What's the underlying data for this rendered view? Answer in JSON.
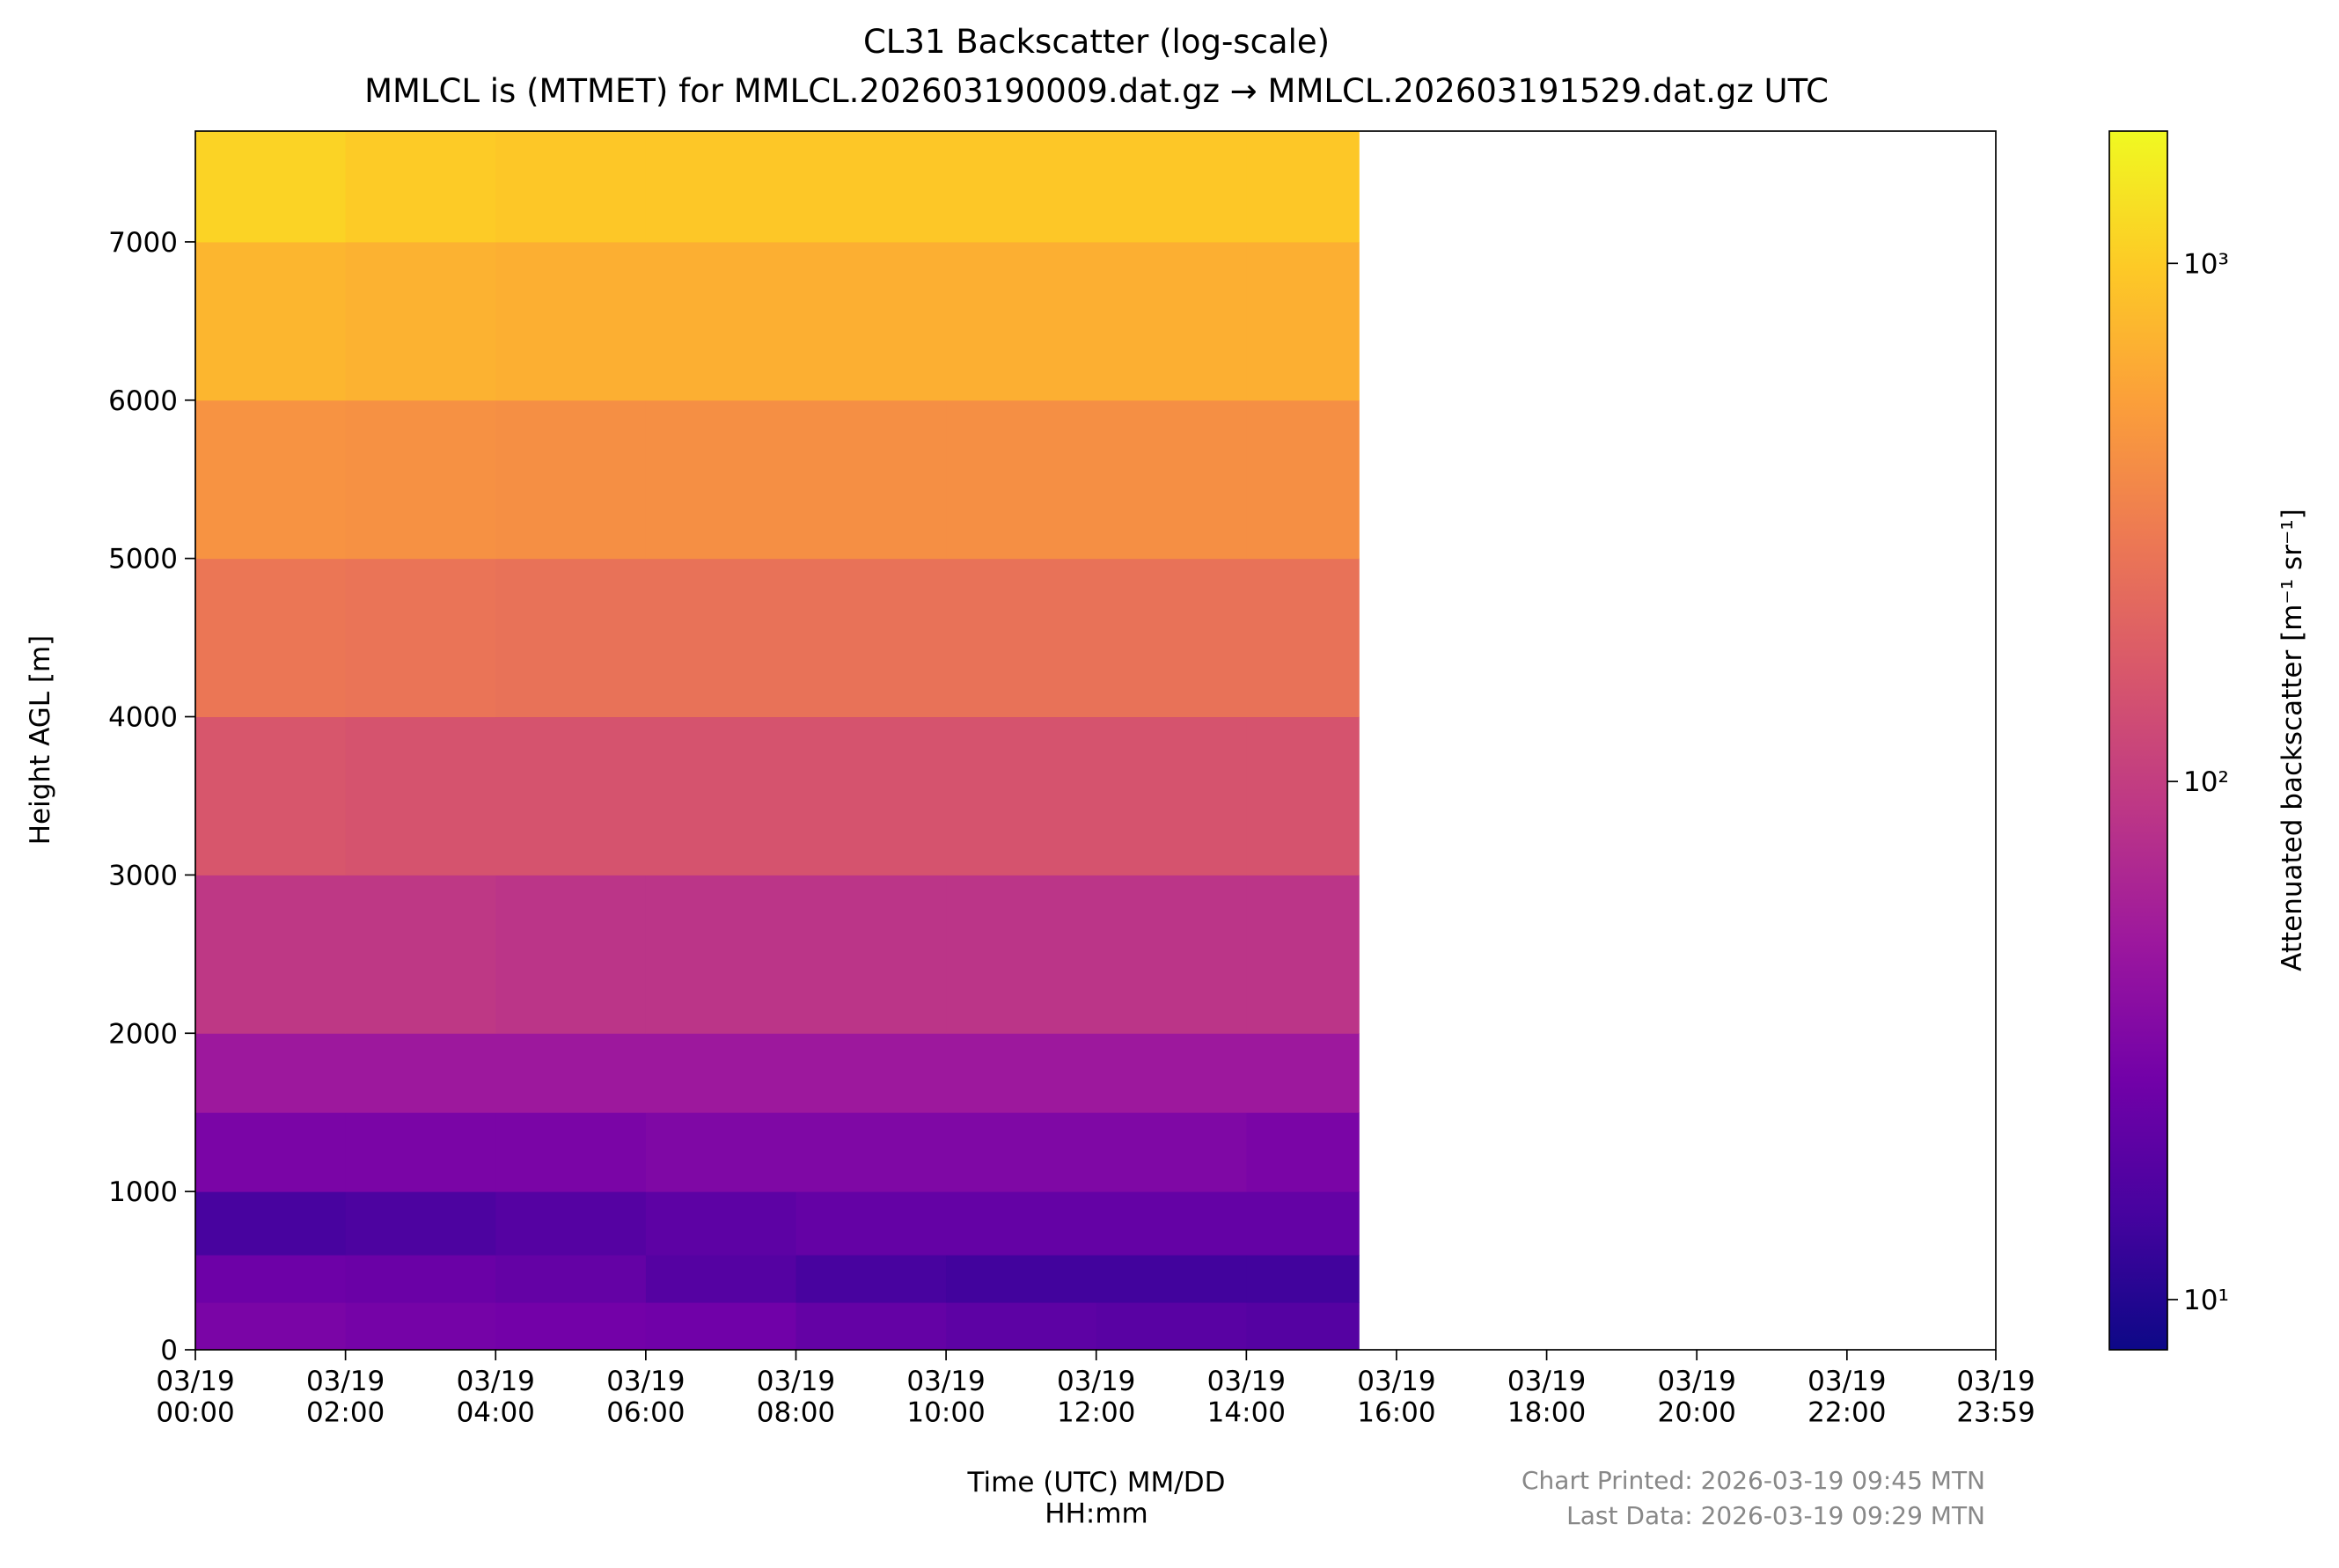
{
  "chart_data": {
    "type": "heatmap",
    "title": "CL31 Backscatter (log-scale)",
    "subtitle": "MMLCL is (MTMET) for MMLCL.202603190009.dat.gz → MMLCL.202603191529.dat.gz UTC",
    "x_label": "Time (UTC) MM/DD\nHH:mm",
    "y_label": "Height AGL [m]",
    "colorbar_label": "Attenuated backscatter [m⁻¹ sr⁻¹]",
    "annotations": [
      "Chart Printed: 2026-03-19 09:45 MTN",
      "Last Data: 2026-03-19 09:29 MTN"
    ],
    "colormap": "plasma",
    "zscale": "log",
    "x_bins": [
      0,
      2,
      4,
      6,
      8,
      10,
      12,
      14,
      15.5
    ],
    "y_bins": [
      0,
      300,
      600,
      1000,
      1500,
      2000,
      3000,
      4000,
      5000,
      6000,
      7000,
      7700
    ],
    "z": [
      [
        30,
        28,
        27,
        26,
        22,
        20,
        19,
        18
      ],
      [
        25,
        24,
        22,
        18,
        15,
        14,
        14,
        14
      ],
      [
        15,
        16,
        18,
        20,
        22,
        22,
        22,
        22
      ],
      [
        30,
        30,
        30,
        32,
        32,
        32,
        32,
        30
      ],
      [
        50,
        50,
        50,
        50,
        50,
        50,
        50,
        50
      ],
      [
        90,
        90,
        85,
        85,
        85,
        85,
        85,
        85
      ],
      [
        160,
        150,
        150,
        150,
        150,
        150,
        150,
        150
      ],
      [
        280,
        270,
        260,
        260,
        260,
        260,
        260,
        260
      ],
      [
        450,
        430,
        420,
        420,
        420,
        420,
        420,
        420
      ],
      [
        750,
        700,
        680,
        680,
        680,
        680,
        680,
        680
      ],
      [
        1100,
        1000,
        950,
        950,
        950,
        950,
        950,
        950
      ]
    ],
    "xlim": [
      0,
      23.983
    ],
    "xticks": [
      {
        "value": 0,
        "label": "03/19\n00:00"
      },
      {
        "value": 2,
        "label": "03/19\n02:00"
      },
      {
        "value": 4,
        "label": "03/19\n04:00"
      },
      {
        "value": 6,
        "label": "03/19\n06:00"
      },
      {
        "value": 8,
        "label": "03/19\n08:00"
      },
      {
        "value": 10,
        "label": "03/19\n10:00"
      },
      {
        "value": 12,
        "label": "03/19\n12:00"
      },
      {
        "value": 14,
        "label": "03/19\n14:00"
      },
      {
        "value": 16,
        "label": "03/19\n16:00"
      },
      {
        "value": 18,
        "label": "03/19\n18:00"
      },
      {
        "value": 20,
        "label": "03/19\n20:00"
      },
      {
        "value": 22,
        "label": "03/19\n22:00"
      },
      {
        "value": 23.983,
        "label": "03/19\n23:59"
      }
    ],
    "ylim": [
      0,
      7700
    ],
    "yticks": [
      0,
      1000,
      2000,
      3000,
      4000,
      5000,
      6000,
      7000
    ],
    "zlim": [
      8,
      1800
    ],
    "zticks": [
      {
        "value": 10,
        "label": "10¹"
      },
      {
        "value": 100,
        "label": "10²"
      },
      {
        "value": 1000,
        "label": "10³"
      }
    ]
  }
}
